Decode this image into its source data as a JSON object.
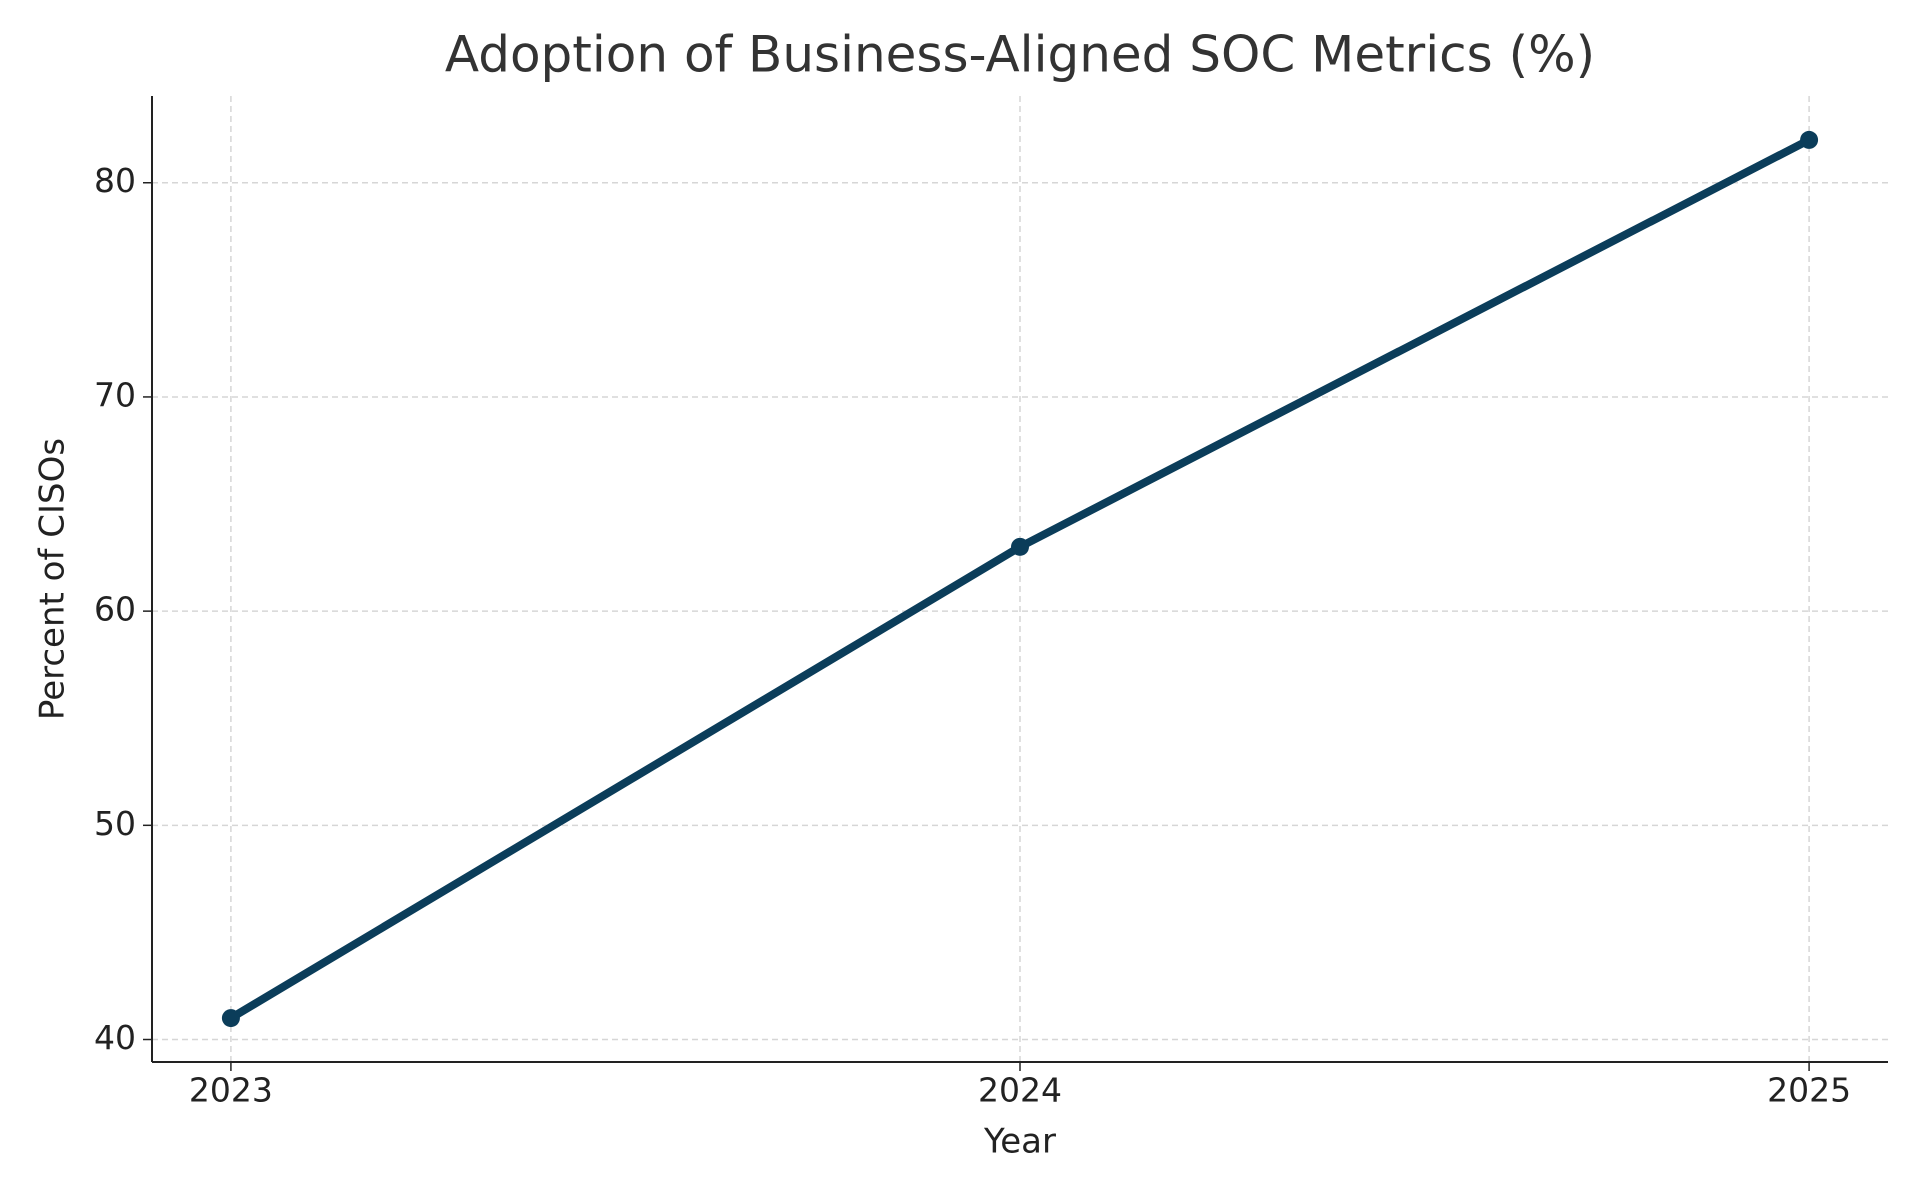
{
  "chart_data": {
    "type": "line",
    "title": "Adoption of Business-Aligned SOC Metrics (%)",
    "x_label": "Year",
    "y_label": "Percent of CISOs",
    "x": [
      2023,
      2024,
      2025
    ],
    "series": [
      {
        "name": "Percent of CISOs",
        "color": "#0b3d5a",
        "values": [
          41,
          63,
          82
        ]
      }
    ],
    "xlim": [
      2022.9,
      2025.1
    ],
    "xticks": [
      2023,
      2024,
      2025
    ],
    "ylim": [
      38.95,
      84.05
    ],
    "yticks": [
      40,
      50,
      60,
      70,
      80
    ],
    "grid": true
  }
}
